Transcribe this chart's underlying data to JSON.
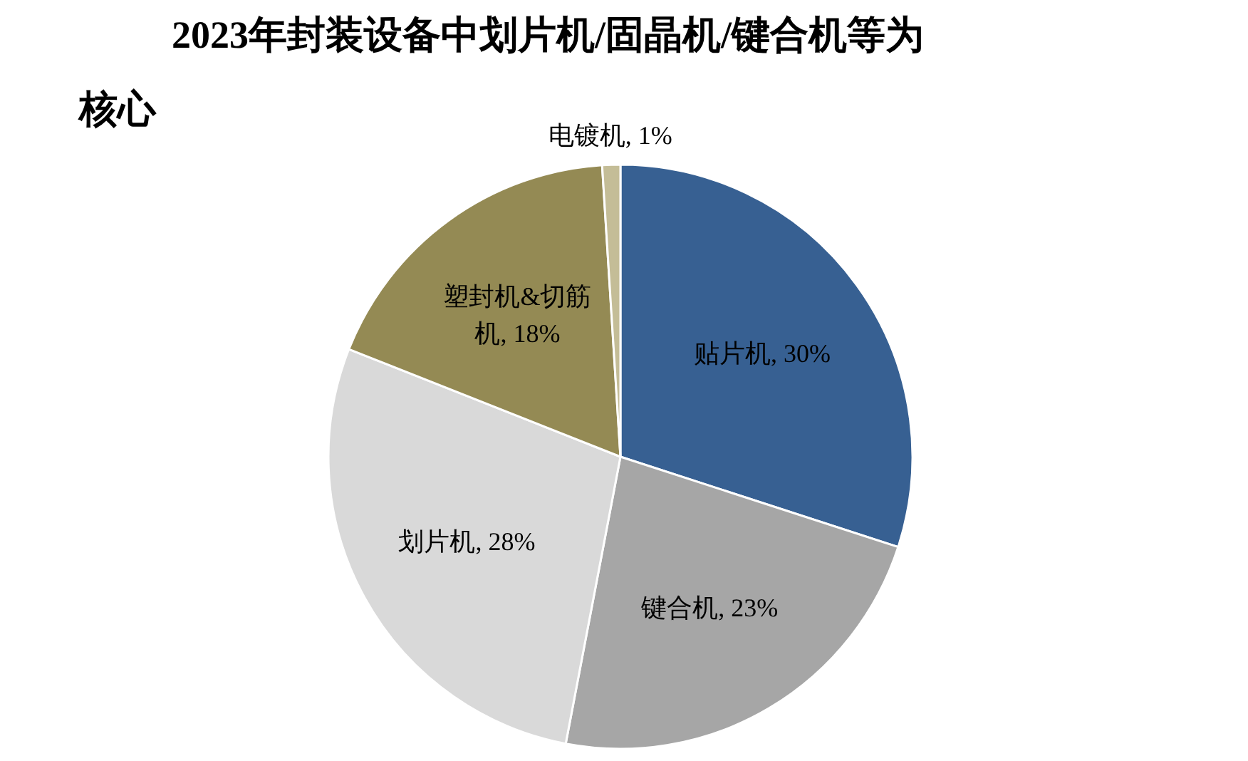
{
  "chart_data": {
    "type": "pie",
    "title": "2023年封装设备中划片机/固晶机/键合机等为核心",
    "categories": [
      "贴片机",
      "键合机",
      "划片机",
      "塑封机&切筋机",
      "电镀机"
    ],
    "values": [
      30,
      23,
      28,
      18,
      1
    ],
    "colors": [
      "#376092",
      "#a6a6a6",
      "#d9d9d9",
      "#948a54",
      "#c4bd97"
    ],
    "value_labels": [
      "30%",
      "23%",
      "28%",
      "18%",
      "1%"
    ]
  }
}
